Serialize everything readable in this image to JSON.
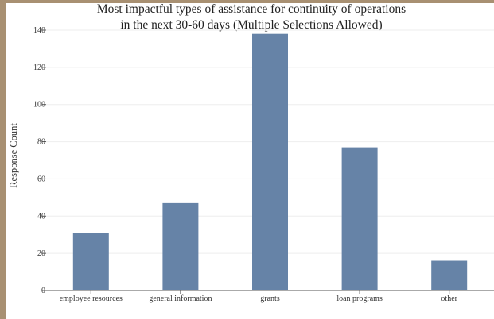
{
  "chart_data": {
    "type": "bar",
    "title_lines": [
      "Most impactful types of assistance for continuity of operations",
      "in the next 30-60 days (Multiple Selections Allowed)"
    ],
    "xlabel": "",
    "ylabel": "Response Count",
    "categories": [
      "employee resources",
      "general information",
      "grants",
      "loan programs",
      "other"
    ],
    "values": [
      31,
      47,
      138,
      77,
      16
    ],
    "ylim": [
      0,
      140
    ],
    "yticks": [
      0,
      20,
      40,
      60,
      80,
      100,
      120,
      140
    ],
    "grid": true,
    "bar_color": "#6683a7",
    "grid_color": "#eeeeee",
    "axis_color": "#555555"
  }
}
